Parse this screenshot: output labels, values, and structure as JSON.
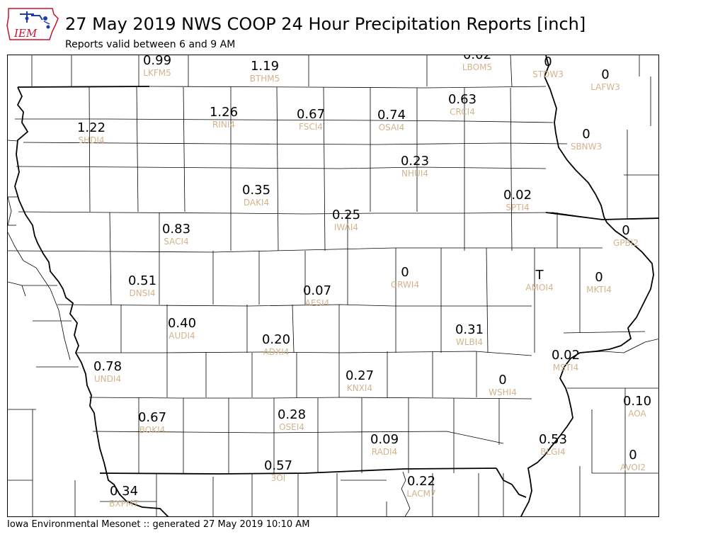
{
  "header": {
    "logo_text": "IEM",
    "title": "27 May 2019 NWS COOP 24 Hour Precipitation Reports [inch]",
    "subtitle": "Reports valid between 6 and 9 AM"
  },
  "footer": {
    "text": "Iowa Environmental Mesonet :: generated 27 May 2019 10:10 AM"
  },
  "colors": {
    "value_text": "#000000",
    "station_id_text": "#d2b48c",
    "logo_red": "#c8102e",
    "logo_blue": "#1f3bb3"
  },
  "stations": [
    {
      "id": "LKFM5",
      "value": "0.99"
    },
    {
      "id": "BTHM5",
      "value": "1.19"
    },
    {
      "id": "LBOM5",
      "value": "0.02"
    },
    {
      "id": "STDW3",
      "value": "0"
    },
    {
      "id": "LAFW3",
      "value": "0"
    },
    {
      "id": "SHDI4",
      "value": "1.22"
    },
    {
      "id": "RINI4",
      "value": "1.26"
    },
    {
      "id": "FSCI4",
      "value": "0.67"
    },
    {
      "id": "OSAI4",
      "value": "0.74"
    },
    {
      "id": "CRCI4",
      "value": "0.63"
    },
    {
      "id": "SBNW3",
      "value": "0"
    },
    {
      "id": "NHUI4",
      "value": "0.23"
    },
    {
      "id": "DAKI4",
      "value": "0.35"
    },
    {
      "id": "SPTI4",
      "value": "0.02"
    },
    {
      "id": "IWAI4",
      "value": "0.25"
    },
    {
      "id": "SACI4",
      "value": "0.83"
    },
    {
      "id": "GPBI2",
      "value": "0"
    },
    {
      "id": "GRWI4",
      "value": "0"
    },
    {
      "id": "AMOI4",
      "value": "T"
    },
    {
      "id": "MKTI4",
      "value": "0"
    },
    {
      "id": "DNSI4",
      "value": "0.51"
    },
    {
      "id": "AESI4",
      "value": "0.07"
    },
    {
      "id": "AUDI4",
      "value": "0.40"
    },
    {
      "id": "WLBI4",
      "value": "0.31"
    },
    {
      "id": "ADXI4",
      "value": "0.20"
    },
    {
      "id": "MSTI4",
      "value": "0.02"
    },
    {
      "id": "UNDI4",
      "value": "0.78"
    },
    {
      "id": "KNXI4",
      "value": "0.27"
    },
    {
      "id": "WSHI4",
      "value": "0"
    },
    {
      "id": "AOA",
      "value": "0.10"
    },
    {
      "id": "BOKI4",
      "value": "0.67"
    },
    {
      "id": "OSEI4",
      "value": "0.28"
    },
    {
      "id": "RADI4",
      "value": "0.09"
    },
    {
      "id": "BLGI4",
      "value": "0.53"
    },
    {
      "id": "AVOI2",
      "value": "0"
    },
    {
      "id": "3OI",
      "value": "0.57"
    },
    {
      "id": "LACM7",
      "value": "0.22"
    },
    {
      "id": "BXPM7",
      "value": "0.34"
    }
  ]
}
